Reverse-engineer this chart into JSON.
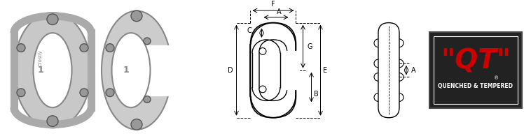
{
  "bg_color": "#f0f0f0",
  "white": "#ffffff",
  "black": "#000000",
  "red": "#cc0000",
  "dark_gray": "#222222",
  "diagram_labels": [
    "F",
    "A",
    "C",
    "D",
    "G",
    "B",
    "E"
  ],
  "side_label": "A",
  "qt_text1": "\"QT\"",
  "qt_text2": "QUENCHED & TEMPERED"
}
